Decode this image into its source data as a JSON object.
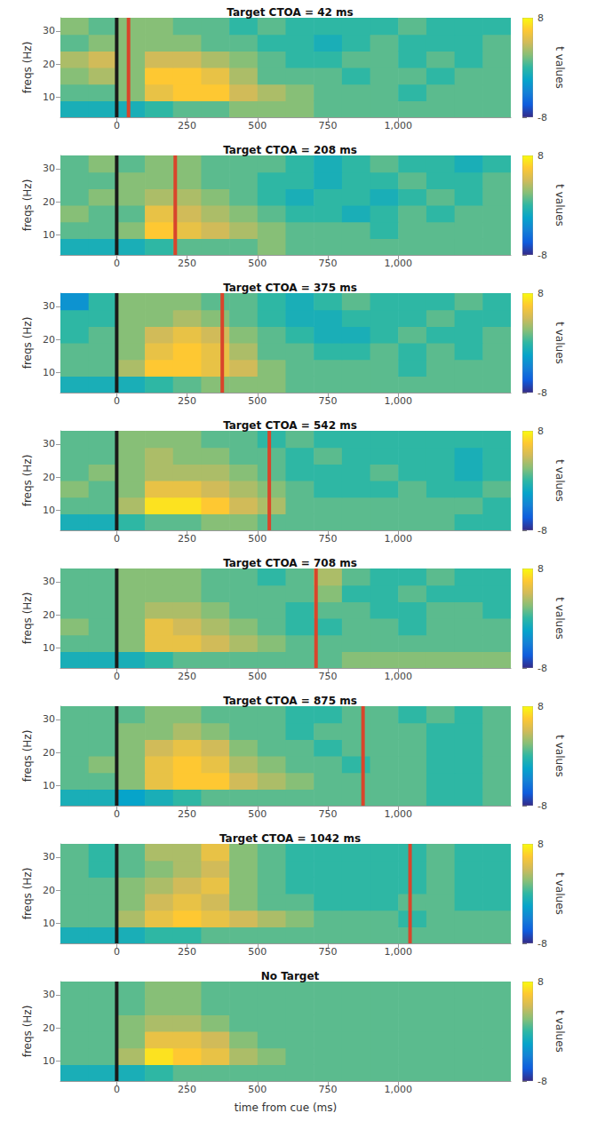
{
  "chart_data": [
    {
      "type": "heatmap",
      "title": "Target CTOA = 42 ms",
      "y_label": "freqs (Hz)",
      "xlim": [
        -200,
        1400
      ],
      "xticks": [
        0,
        250,
        500,
        750,
        1000
      ],
      "ylim": [
        4,
        34
      ],
      "yticks": [
        10,
        20,
        30
      ],
      "grid": false,
      "x_bins": [
        -200,
        -100,
        0,
        100,
        200,
        300,
        400,
        500,
        600,
        700,
        800,
        900,
        1000,
        1100,
        1200,
        1300,
        1400
      ],
      "y_bins": [
        4,
        9,
        14,
        19,
        24,
        29,
        34
      ],
      "values": [
        [
          -1,
          -1,
          -1,
          0,
          1,
          1,
          2,
          2,
          2,
          1,
          1,
          1,
          1,
          1,
          1,
          1
        ],
        [
          1,
          1,
          2,
          5,
          6,
          6,
          4,
          3,
          2,
          1,
          1,
          1,
          0,
          1,
          1,
          1
        ],
        [
          2,
          3,
          2,
          6,
          6,
          5,
          3,
          1,
          1,
          1,
          0,
          1,
          1,
          0,
          1,
          1
        ],
        [
          3,
          4,
          2,
          4,
          4,
          3,
          2,
          1,
          0,
          0,
          1,
          1,
          0,
          1,
          0,
          1
        ],
        [
          1,
          2,
          2,
          2,
          2,
          1,
          1,
          0,
          0,
          -1,
          0,
          1,
          0,
          0,
          0,
          1
        ],
        [
          2,
          1,
          2,
          2,
          1,
          1,
          0,
          1,
          0,
          0,
          0,
          0,
          1,
          0,
          0,
          0
        ]
      ],
      "color_range": [
        -8,
        8
      ],
      "color_ticks": [
        -8,
        8
      ],
      "color_label": "t values",
      "vlines": [
        {
          "value": 0,
          "color": "#1a1a1a"
        },
        {
          "value": 42,
          "color": "#d9452b"
        }
      ]
    },
    {
      "type": "heatmap",
      "title": "Target CTOA = 208 ms",
      "y_label": "freqs (Hz)",
      "xlim": [
        -200,
        1400
      ],
      "xticks": [
        0,
        250,
        500,
        750,
        1000
      ],
      "ylim": [
        4,
        34
      ],
      "yticks": [
        10,
        20,
        30
      ],
      "grid": false,
      "x_bins": [
        -200,
        -100,
        0,
        100,
        200,
        300,
        400,
        500,
        600,
        700,
        800,
        900,
        1000,
        1100,
        1200,
        1300,
        1400
      ],
      "y_bins": [
        4,
        9,
        14,
        19,
        24,
        29,
        34
      ],
      "values": [
        [
          -1,
          -1,
          -1,
          0,
          1,
          1,
          1,
          2,
          1,
          1,
          1,
          1,
          1,
          1,
          1,
          1
        ],
        [
          1,
          1,
          2,
          6,
          5,
          4,
          3,
          2,
          1,
          1,
          1,
          0,
          1,
          1,
          1,
          1
        ],
        [
          2,
          1,
          1,
          5,
          4,
          3,
          2,
          1,
          0,
          0,
          -1,
          0,
          1,
          0,
          1,
          1
        ],
        [
          1,
          2,
          2,
          3,
          3,
          2,
          1,
          0,
          -1,
          0,
          0,
          -1,
          0,
          1,
          0,
          1
        ],
        [
          1,
          1,
          2,
          2,
          2,
          1,
          1,
          0,
          0,
          -1,
          0,
          0,
          1,
          0,
          0,
          1
        ],
        [
          1,
          2,
          1,
          2,
          2,
          1,
          1,
          1,
          0,
          -1,
          0,
          1,
          0,
          0,
          -1,
          0
        ]
      ],
      "color_range": [
        -8,
        8
      ],
      "color_ticks": [
        -8,
        8
      ],
      "color_label": "t values",
      "vlines": [
        {
          "value": 0,
          "color": "#1a1a1a"
        },
        {
          "value": 208,
          "color": "#d9452b"
        }
      ]
    },
    {
      "type": "heatmap",
      "title": "Target CTOA = 375 ms",
      "y_label": "freqs (Hz)",
      "xlim": [
        -200,
        1400
      ],
      "xticks": [
        0,
        250,
        500,
        750,
        1000
      ],
      "ylim": [
        4,
        34
      ],
      "yticks": [
        10,
        20,
        30
      ],
      "grid": false,
      "x_bins": [
        -200,
        -100,
        0,
        100,
        200,
        300,
        400,
        500,
        600,
        700,
        800,
        900,
        1000,
        1100,
        1200,
        1300,
        1400
      ],
      "y_bins": [
        4,
        9,
        14,
        19,
        24,
        29,
        34
      ],
      "values": [
        [
          -1,
          -1,
          -1,
          0,
          1,
          2,
          2,
          2,
          1,
          1,
          1,
          1,
          1,
          1,
          1,
          1
        ],
        [
          1,
          1,
          3,
          6,
          6,
          5,
          4,
          2,
          1,
          1,
          1,
          1,
          0,
          1,
          1,
          1
        ],
        [
          1,
          1,
          2,
          5,
          6,
          5,
          3,
          1,
          1,
          0,
          0,
          1,
          0,
          1,
          0,
          1
        ],
        [
          0,
          1,
          2,
          4,
          5,
          4,
          2,
          1,
          0,
          -1,
          -1,
          0,
          1,
          0,
          0,
          1
        ],
        [
          0,
          0,
          2,
          2,
          3,
          2,
          1,
          0,
          -1,
          -1,
          0,
          0,
          0,
          1,
          0,
          0
        ],
        [
          -3,
          0,
          2,
          2,
          2,
          1,
          1,
          0,
          -1,
          0,
          1,
          0,
          0,
          0,
          1,
          0
        ]
      ],
      "color_range": [
        -8,
        8
      ],
      "color_ticks": [
        -8,
        8
      ],
      "color_label": "t values",
      "vlines": [
        {
          "value": 0,
          "color": "#1a1a1a"
        },
        {
          "value": 375,
          "color": "#d9452b"
        }
      ]
    },
    {
      "type": "heatmap",
      "title": "Target CTOA = 542 ms",
      "y_label": "freqs (Hz)",
      "xlim": [
        -200,
        1400
      ],
      "xticks": [
        0,
        250,
        500,
        750,
        1000
      ],
      "ylim": [
        4,
        34
      ],
      "yticks": [
        10,
        20,
        30
      ],
      "grid": false,
      "x_bins": [
        -200,
        -100,
        0,
        100,
        200,
        300,
        400,
        500,
        600,
        700,
        800,
        900,
        1000,
        1100,
        1200,
        1300,
        1400
      ],
      "y_bins": [
        4,
        9,
        14,
        19,
        24,
        29,
        34
      ],
      "values": [
        [
          -1,
          -1,
          0,
          1,
          1,
          2,
          2,
          1,
          1,
          1,
          1,
          1,
          1,
          1,
          0,
          0
        ],
        [
          1,
          1,
          3,
          7,
          7,
          6,
          4,
          3,
          1,
          1,
          1,
          1,
          1,
          1,
          1,
          0
        ],
        [
          2,
          1,
          2,
          5,
          5,
          4,
          3,
          2,
          1,
          0,
          0,
          0,
          1,
          0,
          0,
          1
        ],
        [
          1,
          2,
          2,
          3,
          3,
          3,
          2,
          1,
          0,
          0,
          0,
          1,
          0,
          0,
          -1,
          0
        ],
        [
          1,
          1,
          2,
          3,
          2,
          2,
          1,
          1,
          0,
          1,
          0,
          0,
          0,
          0,
          -1,
          0
        ],
        [
          1,
          1,
          2,
          2,
          2,
          1,
          1,
          0,
          1,
          0,
          0,
          0,
          0,
          0,
          0,
          0
        ]
      ],
      "color_range": [
        -8,
        8
      ],
      "color_ticks": [
        -8,
        8
      ],
      "color_label": "t values",
      "vlines": [
        {
          "value": 0,
          "color": "#1a1a1a"
        },
        {
          "value": 542,
          "color": "#d9452b"
        }
      ]
    },
    {
      "type": "heatmap",
      "title": "Target CTOA = 708 ms",
      "y_label": "freqs (Hz)",
      "xlim": [
        -200,
        1400
      ],
      "xticks": [
        0,
        250,
        500,
        750,
        1000
      ],
      "ylim": [
        4,
        34
      ],
      "yticks": [
        10,
        20,
        30
      ],
      "grid": false,
      "x_bins": [
        -200,
        -100,
        0,
        100,
        200,
        300,
        400,
        500,
        600,
        700,
        800,
        900,
        1000,
        1100,
        1200,
        1300,
        1400
      ],
      "y_bins": [
        4,
        9,
        14,
        19,
        24,
        29,
        34
      ],
      "values": [
        [
          -1,
          -1,
          -1,
          0,
          1,
          1,
          1,
          1,
          1,
          1,
          2,
          2,
          2,
          2,
          2,
          2
        ],
        [
          1,
          1,
          2,
          5,
          5,
          4,
          3,
          2,
          1,
          1,
          1,
          1,
          1,
          1,
          1,
          1
        ],
        [
          2,
          1,
          2,
          5,
          4,
          3,
          2,
          1,
          0,
          0,
          1,
          1,
          0,
          1,
          1,
          1
        ],
        [
          1,
          1,
          2,
          3,
          3,
          2,
          1,
          1,
          0,
          1,
          1,
          0,
          0,
          1,
          1,
          0
        ],
        [
          1,
          1,
          2,
          2,
          2,
          1,
          1,
          1,
          1,
          2,
          0,
          0,
          1,
          0,
          0,
          0
        ],
        [
          1,
          1,
          2,
          2,
          2,
          1,
          1,
          0,
          1,
          3,
          1,
          0,
          0,
          1,
          0,
          0
        ]
      ],
      "color_range": [
        -8,
        8
      ],
      "color_ticks": [
        -8,
        8
      ],
      "color_label": "t values",
      "vlines": [
        {
          "value": 0,
          "color": "#1a1a1a"
        },
        {
          "value": 708,
          "color": "#d9452b"
        }
      ]
    },
    {
      "type": "heatmap",
      "title": "Target CTOA = 875 ms",
      "y_label": "freqs (Hz)",
      "xlim": [
        -200,
        1400
      ],
      "xticks": [
        0,
        250,
        500,
        750,
        1000
      ],
      "ylim": [
        4,
        34
      ],
      "yticks": [
        10,
        20,
        30
      ],
      "grid": false,
      "x_bins": [
        -200,
        -100,
        0,
        100,
        200,
        300,
        400,
        500,
        600,
        700,
        800,
        900,
        1000,
        1100,
        1200,
        1300,
        1400
      ],
      "y_bins": [
        4,
        9,
        14,
        19,
        24,
        29,
        34
      ],
      "values": [
        [
          -1,
          -1,
          -2,
          -1,
          0,
          1,
          1,
          1,
          1,
          1,
          1,
          1,
          1,
          0,
          0,
          1
        ],
        [
          1,
          1,
          2,
          5,
          6,
          6,
          4,
          3,
          2,
          1,
          1,
          1,
          1,
          0,
          0,
          1
        ],
        [
          1,
          2,
          2,
          5,
          6,
          5,
          3,
          2,
          1,
          1,
          0,
          1,
          1,
          0,
          0,
          1
        ],
        [
          1,
          1,
          2,
          4,
          5,
          4,
          2,
          1,
          1,
          0,
          1,
          1,
          1,
          0,
          0,
          1
        ],
        [
          1,
          1,
          2,
          2,
          3,
          2,
          1,
          1,
          0,
          1,
          1,
          1,
          1,
          0,
          0,
          1
        ],
        [
          1,
          1,
          1,
          2,
          2,
          1,
          1,
          1,
          0,
          0,
          1,
          1,
          0,
          1,
          0,
          1
        ]
      ],
      "color_range": [
        -8,
        8
      ],
      "color_ticks": [
        -8,
        8
      ],
      "color_label": "t values",
      "vlines": [
        {
          "value": 0,
          "color": "#1a1a1a"
        },
        {
          "value": 875,
          "color": "#d9452b"
        }
      ]
    },
    {
      "type": "heatmap",
      "title": "Target CTOA = 1042 ms",
      "y_label": "freqs (Hz)",
      "xlim": [
        -200,
        1400
      ],
      "xticks": [
        0,
        250,
        500,
        750,
        1000
      ],
      "ylim": [
        4,
        34
      ],
      "yticks": [
        10,
        20,
        30
      ],
      "grid": false,
      "x_bins": [
        -200,
        -100,
        0,
        100,
        200,
        300,
        400,
        500,
        600,
        700,
        800,
        900,
        1000,
        1100,
        1200,
        1300,
        1400
      ],
      "y_bins": [
        4,
        9,
        14,
        19,
        24,
        29,
        34
      ],
      "values": [
        [
          -1,
          -1,
          -1,
          0,
          0,
          1,
          1,
          1,
          1,
          1,
          1,
          1,
          1,
          1,
          1,
          1
        ],
        [
          1,
          1,
          3,
          5,
          6,
          5,
          4,
          3,
          2,
          1,
          1,
          1,
          0,
          1,
          1,
          1
        ],
        [
          1,
          1,
          2,
          4,
          5,
          4,
          2,
          1,
          1,
          0,
          0,
          0,
          1,
          1,
          0,
          0
        ],
        [
          1,
          1,
          2,
          3,
          4,
          5,
          2,
          1,
          0,
          0,
          0,
          0,
          0,
          1,
          0,
          0
        ],
        [
          1,
          0,
          1,
          2,
          3,
          4,
          2,
          1,
          0,
          0,
          0,
          0,
          0,
          1,
          0,
          0
        ],
        [
          1,
          0,
          1,
          3,
          3,
          5,
          2,
          1,
          0,
          0,
          0,
          0,
          0,
          1,
          0,
          0
        ]
      ],
      "color_range": [
        -8,
        8
      ],
      "color_ticks": [
        -8,
        8
      ],
      "color_label": "t values",
      "vlines": [
        {
          "value": 0,
          "color": "#1a1a1a"
        },
        {
          "value": 1042,
          "color": "#d9452b"
        }
      ]
    },
    {
      "type": "heatmap",
      "title": "No Target",
      "y_label": "freqs (Hz)",
      "x_label": "time from cue (ms)",
      "xlim": [
        -200,
        1400
      ],
      "xticks": [
        0,
        250,
        500,
        750,
        1000
      ],
      "ylim": [
        4,
        34
      ],
      "yticks": [
        10,
        20,
        30
      ],
      "grid": false,
      "x_bins": [
        -200,
        -100,
        0,
        100,
        200,
        300,
        400,
        500,
        600,
        700,
        800,
        900,
        1000,
        1100,
        1200,
        1300,
        1400
      ],
      "y_bins": [
        4,
        9,
        14,
        19,
        24,
        29,
        34
      ],
      "values": [
        [
          -1,
          -1,
          -1,
          0,
          1,
          1,
          1,
          1,
          1,
          1,
          1,
          1,
          1,
          1,
          1,
          1
        ],
        [
          1,
          1,
          3,
          7,
          6,
          5,
          3,
          2,
          1,
          1,
          1,
          1,
          1,
          1,
          1,
          1
        ],
        [
          1,
          1,
          2,
          5,
          5,
          4,
          2,
          1,
          1,
          1,
          1,
          1,
          1,
          1,
          1,
          1
        ],
        [
          1,
          1,
          2,
          3,
          3,
          2,
          1,
          1,
          1,
          1,
          1,
          1,
          1,
          1,
          1,
          1
        ],
        [
          1,
          1,
          1,
          2,
          2,
          1,
          1,
          1,
          1,
          1,
          1,
          1,
          1,
          1,
          1,
          1
        ],
        [
          1,
          1,
          1,
          2,
          2,
          1,
          1,
          1,
          1,
          1,
          1,
          1,
          1,
          1,
          1,
          1
        ]
      ],
      "color_range": [
        -8,
        8
      ],
      "color_ticks": [
        -8,
        8
      ],
      "color_label": "t values",
      "vlines": [
        {
          "value": 0,
          "color": "#1a1a1a"
        }
      ]
    }
  ]
}
